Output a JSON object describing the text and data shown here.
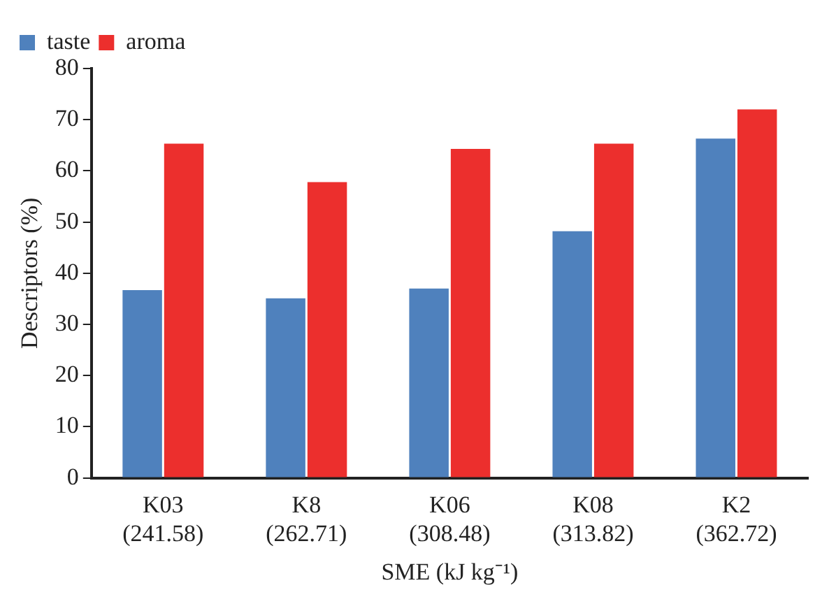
{
  "chart_data": {
    "type": "bar",
    "ylabel": "Descriptors (%)",
    "xlabel": "SME (kJ kg⁻¹)",
    "categories": [
      "K03\n(241.58)",
      "K8\n(262.71)",
      "K06\n(308.48)",
      "K08\n(313.82)",
      "K2\n(362.72)"
    ],
    "series": [
      {
        "name": "taste",
        "color": "#4f81bd",
        "values": [
          36.7,
          35.1,
          37.0,
          48.2,
          66.3
        ]
      },
      {
        "name": "aroma",
        "color": "#ec2f2d",
        "values": [
          65.3,
          57.8,
          64.3,
          65.3,
          72.0
        ]
      }
    ],
    "ylim": [
      0,
      80
    ],
    "yticks": [
      0,
      10,
      20,
      30,
      40,
      50,
      60,
      70,
      80
    ],
    "grid": false,
    "legend": "top left"
  }
}
